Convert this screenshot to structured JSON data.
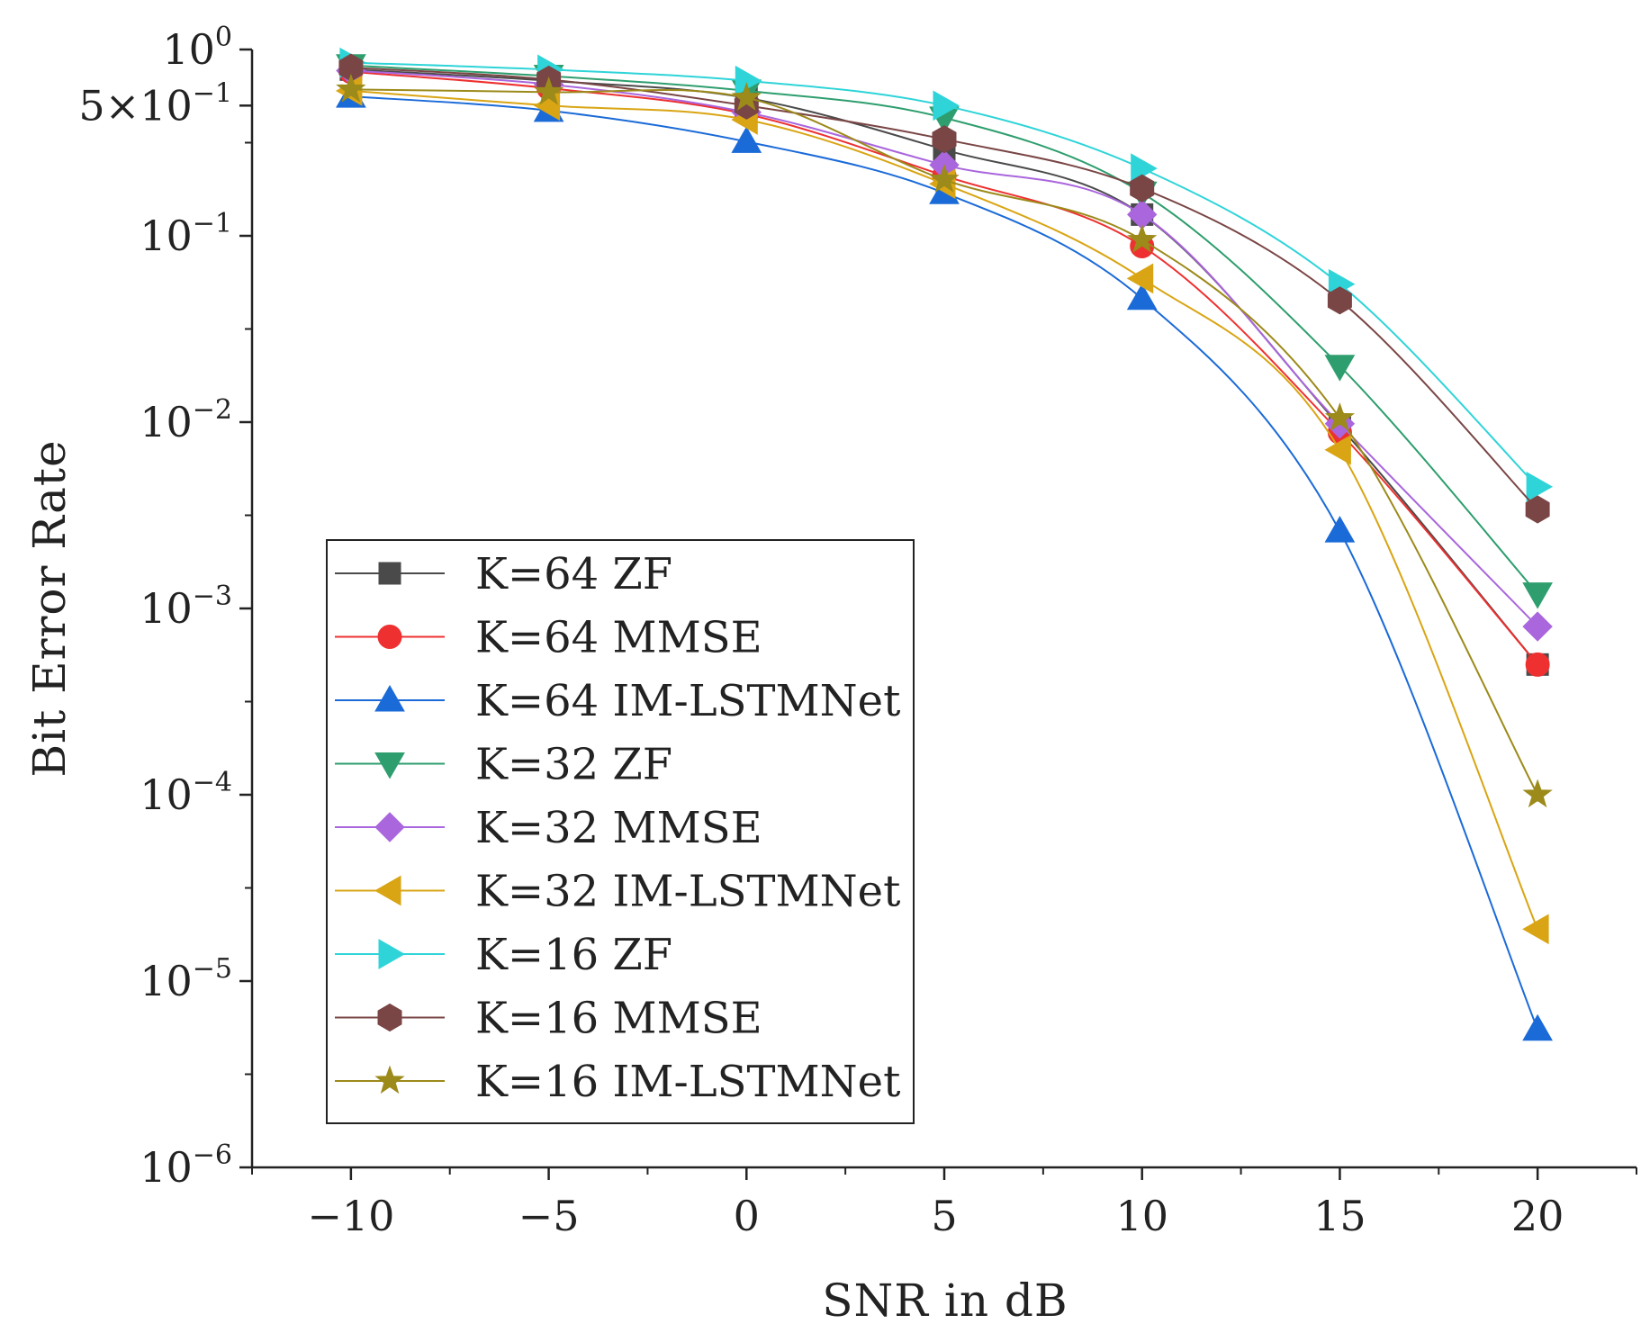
{
  "chart_data": {
    "type": "line",
    "title": "",
    "xlabel": "SNR in dB",
    "ylabel": "Bit Error Rate",
    "yscale": "log",
    "xlim": [
      -12.5,
      22.5
    ],
    "ylim": [
      1e-06,
      1
    ],
    "x": [
      -10,
      -5,
      0,
      5,
      10,
      15,
      20
    ],
    "x_ticks": [
      -10,
      -5,
      0,
      5,
      10,
      15,
      20
    ],
    "x_tick_labels": [
      "−10",
      "−5",
      "0",
      "5",
      "10",
      "15",
      "20"
    ],
    "y_ticks": [
      {
        "value": 1,
        "base": "10",
        "exp": "0"
      },
      {
        "value": 0.5,
        "base": "5×10",
        "exp": "−1"
      },
      {
        "value": 0.1,
        "base": "10",
        "exp": "−1"
      },
      {
        "value": 0.01,
        "base": "10",
        "exp": "−2"
      },
      {
        "value": 0.001,
        "base": "10",
        "exp": "−3"
      },
      {
        "value": 0.0001,
        "base": "10",
        "exp": "−4"
      },
      {
        "value": 1e-05,
        "base": "10",
        "exp": "−5"
      },
      {
        "value": 1e-06,
        "base": "10",
        "exp": "−6"
      }
    ],
    "legend_position": "bottom-left",
    "series": [
      {
        "name": "K=64 ZF",
        "color": "#4a4a4a",
        "marker": "square",
        "values": [
          0.78,
          0.68,
          0.55,
          0.29,
          0.13,
          0.0095,
          0.0005
        ]
      },
      {
        "name": "K=64 MMSE",
        "color": "#ee3030",
        "marker": "circle",
        "values": [
          0.76,
          0.62,
          0.45,
          0.21,
          0.088,
          0.0088,
          0.0005
        ]
      },
      {
        "name": "K=64 IM-LSTMNet",
        "color": "#1a6ad8",
        "marker": "triangle-up",
        "values": [
          0.56,
          0.47,
          0.32,
          0.17,
          0.046,
          0.0026,
          5.5e-06
        ]
      },
      {
        "name": "K=32 ZF",
        "color": "#2e9e6e",
        "marker": "triangle-down",
        "values": [
          0.82,
          0.72,
          0.6,
          0.43,
          0.17,
          0.02,
          0.0012
        ]
      },
      {
        "name": "K=32 MMSE",
        "color": "#aa66dd",
        "marker": "diamond",
        "values": [
          0.77,
          0.65,
          0.46,
          0.24,
          0.13,
          0.0098,
          0.0008
        ]
      },
      {
        "name": "K=32 IM-LSTMNet",
        "color": "#d9a514",
        "marker": "triangle-left",
        "values": [
          0.6,
          0.5,
          0.42,
          0.19,
          0.059,
          0.0071,
          1.9e-05
        ]
      },
      {
        "name": "K=16 ZF",
        "color": "#2ed4d8",
        "marker": "triangle-right",
        "values": [
          0.85,
          0.78,
          0.68,
          0.5,
          0.23,
          0.055,
          0.0045
        ]
      },
      {
        "name": "K=16 MMSE",
        "color": "#7a4545",
        "marker": "hexagon",
        "values": [
          0.8,
          0.69,
          0.5,
          0.33,
          0.18,
          0.045,
          0.0034
        ]
      },
      {
        "name": "K=16 IM-LSTMNet",
        "color": "#9c8a1a",
        "marker": "star",
        "values": [
          0.61,
          0.59,
          0.55,
          0.2,
          0.095,
          0.0105,
          0.0001
        ]
      }
    ]
  }
}
